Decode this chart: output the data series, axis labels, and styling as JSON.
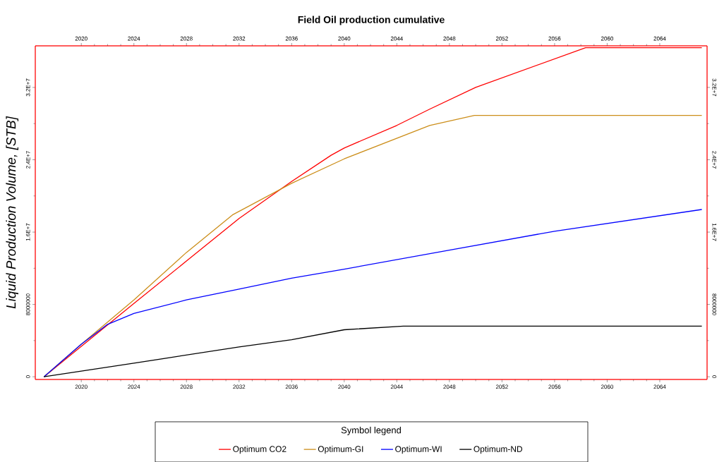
{
  "chart_data": {
    "type": "line",
    "title": "Field Oil production cumulative",
    "ylabel": "Liquid Production Volume, [STB]",
    "legend_title": "Symbol legend",
    "legend": "bottom",
    "xlim": [
      2016.5,
      2067.6
    ],
    "ylim": [
      -300000,
      36600000
    ],
    "xticks": [
      2020,
      2024,
      2028,
      2032,
      2036,
      2040,
      2044,
      2048,
      2052,
      2056,
      2060,
      2064
    ],
    "x2lim": [
      2016.5,
      2067.6
    ],
    "x2ticks": [
      2020,
      2024,
      2028,
      2032,
      2036,
      2040,
      2044,
      2048,
      2052,
      2056,
      2060,
      2064
    ],
    "yticks": [
      0,
      {
        "value": 8000000,
        "label": "8000000"
      },
      {
        "value": 16000000,
        "label": "1.6E+7"
      },
      {
        "value": 24000000,
        "label": "2.4E+7"
      },
      {
        "value": 32000000,
        "label": "3.2E+7"
      }
    ],
    "y2lim": [
      -300000,
      36600000
    ],
    "y2ticks": [
      0,
      {
        "value": 8000000,
        "label": "8000000"
      },
      {
        "value": 16000000,
        "label": "1.6E+7"
      },
      {
        "value": 24000000,
        "label": "2.4E+7"
      },
      {
        "value": 32000000,
        "label": "3.2E+7"
      }
    ],
    "series": [
      {
        "name": "Optimum CO2",
        "color": "#ff0000",
        "x": [
          2017.16,
          2024,
          2028,
          2032,
          2036,
          2039,
          2040,
          2044,
          2046.5,
          2050,
          2058.36,
          2067.2
        ],
        "values": [
          0,
          8100000,
          12800000,
          17500000,
          21600000,
          24500000,
          25300000,
          27800000,
          29600000,
          32000000,
          36400000,
          36400000
        ]
      },
      {
        "name": "Optimum-GI",
        "color": "#cc8e1a",
        "x": [
          2017.16,
          2020,
          2024,
          2028,
          2031.5,
          2036,
          2040,
          2046.5,
          2049.9,
          2067.2
        ],
        "values": [
          0,
          3600000,
          8500000,
          13750000,
          17900000,
          21400000,
          24100000,
          27800000,
          28900000,
          28900000
        ]
      },
      {
        "name": "Optimum-WI",
        "color": "#0000ff",
        "x": [
          2017.16,
          2020,
          2022,
          2024,
          2028,
          2032,
          2036,
          2040,
          2048,
          2056,
          2067.2
        ],
        "values": [
          0,
          3600000,
          5800000,
          7000000,
          8500000,
          9700000,
          10900000,
          11900000,
          14000000,
          16100000,
          18500000
        ]
      },
      {
        "name": "Optimum-ND",
        "color": "#000000",
        "x": [
          2017.16,
          2024,
          2032,
          2036,
          2040,
          2044.5,
          2067.2
        ],
        "values": [
          0,
          1500000,
          3300000,
          4100000,
          5200000,
          5600000,
          5600000
        ]
      }
    ]
  }
}
